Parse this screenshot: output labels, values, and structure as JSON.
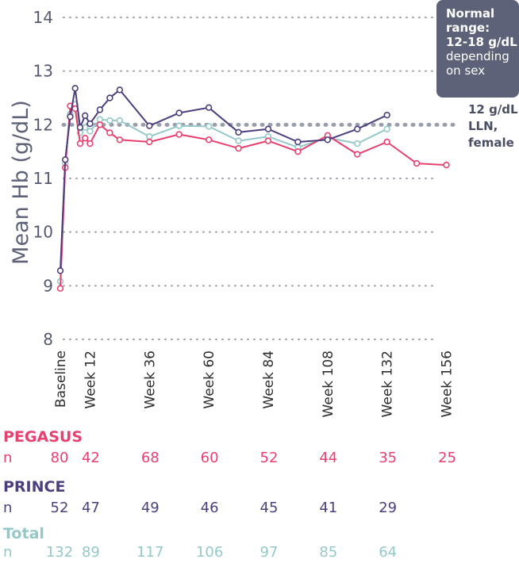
{
  "colors": {
    "pegasus": "#e8416f",
    "prince": "#4d3f7e",
    "total": "#96c8c9",
    "grid": "#9aa0ab",
    "axis_text": "#55596f"
  },
  "chart_data": {
    "type": "line",
    "ylabel": "Mean Hb (g/dL)",
    "ylim": [
      8,
      14
    ],
    "yticks": [
      8,
      9,
      10,
      11,
      12,
      13,
      14
    ],
    "xlabel": "",
    "xlim": [
      0,
      160
    ],
    "xtick_labels": [
      "Baseline",
      "Week 12",
      "Week 36",
      "Week 60",
      "Week 84",
      "Week 108",
      "Week 132",
      "Week 156"
    ],
    "xtick_values": [
      0,
      12,
      36,
      60,
      84,
      108,
      132,
      156
    ],
    "grid": "horizontal dotted",
    "reference_line": {
      "y": 12,
      "label": [
        "12 g/dL",
        "LLN,",
        "female"
      ]
    },
    "series": [
      {
        "name": "PEGASUS",
        "x": [
          0,
          2,
          4,
          6,
          8,
          10,
          12,
          16,
          20,
          24,
          36,
          48,
          60,
          72,
          84,
          96,
          108,
          120,
          132,
          144,
          156
        ],
        "y": [
          8.95,
          11.2,
          12.35,
          12.3,
          11.65,
          11.75,
          11.65,
          12.0,
          11.85,
          11.72,
          11.68,
          11.82,
          11.72,
          11.56,
          11.7,
          11.5,
          11.8,
          11.45,
          11.68,
          11.28,
          11.25
        ]
      },
      {
        "name": "PRINCE",
        "x": [
          0,
          2,
          4,
          6,
          8,
          10,
          12,
          16,
          20,
          24,
          36,
          48,
          60,
          72,
          84,
          96,
          108,
          120,
          132
        ],
        "y": [
          9.28,
          11.35,
          12.15,
          12.68,
          11.95,
          12.17,
          12.02,
          12.28,
          12.5,
          12.65,
          11.98,
          12.22,
          12.32,
          11.86,
          11.92,
          11.68,
          11.72,
          11.92,
          12.18
        ]
      },
      {
        "name": "Total",
        "x": [
          0,
          2,
          4,
          6,
          8,
          10,
          12,
          16,
          20,
          24,
          36,
          48,
          60,
          72,
          84,
          96,
          108,
          120,
          132
        ],
        "y": [
          9.08,
          11.28,
          12.2,
          12.38,
          11.85,
          11.95,
          11.88,
          12.1,
          12.08,
          12.08,
          11.78,
          11.98,
          11.97,
          11.7,
          11.78,
          11.58,
          11.76,
          11.65,
          11.92
        ]
      }
    ]
  },
  "note": {
    "bold_lines": [
      "Normal",
      "range:",
      "12-18 g/dL"
    ],
    "regular_lines": [
      "depending",
      "on sex"
    ]
  },
  "n_table": {
    "n_label": "n",
    "groups": [
      {
        "name": "PEGASUS",
        "values": [
          "80",
          "42",
          "68",
          "60",
          "52",
          "44",
          "35",
          "25"
        ]
      },
      {
        "name": "PRINCE",
        "values": [
          "52",
          "47",
          "49",
          "46",
          "45",
          "41",
          "29"
        ]
      },
      {
        "name": "Total",
        "values": [
          "132",
          "89",
          "117",
          "106",
          "97",
          "85",
          "64"
        ]
      }
    ]
  }
}
